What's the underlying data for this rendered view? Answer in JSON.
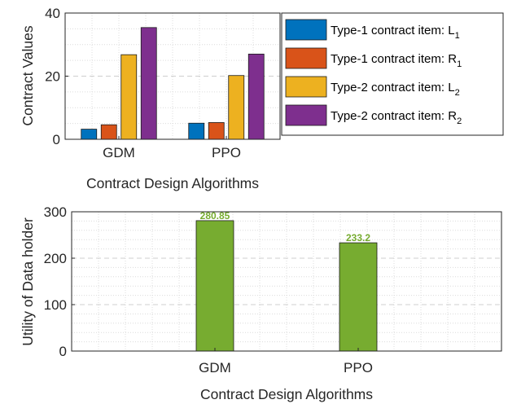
{
  "chart_data": [
    {
      "type": "bar",
      "categories": [
        "GDM",
        "PPO"
      ],
      "series": [
        {
          "name": "Type-1 contract item: L",
          "sub": "1",
          "color": "#0072BD",
          "values": [
            3.2,
            5.1
          ]
        },
        {
          "name": "Type-1 contract item: R",
          "sub": "1",
          "color": "#D95319",
          "values": [
            4.6,
            5.3
          ]
        },
        {
          "name": "Type-2 contract item: L",
          "sub": "2",
          "color": "#EDB120",
          "values": [
            26.8,
            20.2
          ]
        },
        {
          "name": "Type-2 contract item: R",
          "sub": "2",
          "color": "#7E2F8E",
          "values": [
            35.4,
            27.0
          ]
        }
      ],
      "xlabel": "Contract Design Algorithms",
      "ylabel": "Contract Values",
      "ylim": [
        0,
        40
      ],
      "yticks": [
        "0",
        "20",
        "40"
      ],
      "grid": true,
      "legend": "right"
    },
    {
      "type": "bar",
      "categories": [
        "GDM",
        "PPO"
      ],
      "values": [
        280.85,
        233.2
      ],
      "data_labels": [
        "280.85",
        "233.2"
      ],
      "color": "#77AC30",
      "xlabel": "Contract Design Algorithms",
      "ylabel": "Utility of Data holder",
      "ylim": [
        0,
        300
      ],
      "yticks": [
        "0",
        "100",
        "200",
        "300"
      ],
      "grid": true
    }
  ]
}
